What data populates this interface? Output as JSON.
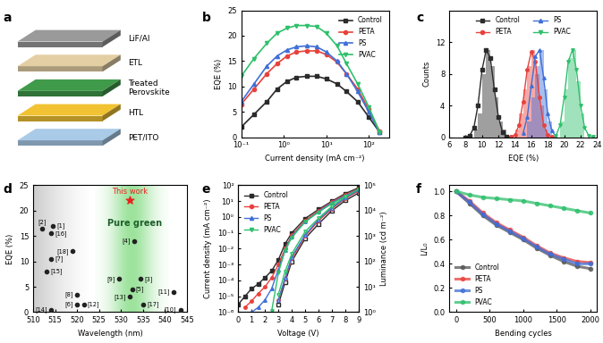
{
  "chart_data": [
    {
      "panel_label": "a",
      "type": "diagram",
      "layers": [
        {
          "name": "LiF/Al",
          "color": "#9a9a9a"
        },
        {
          "name": "ETL",
          "color": "#e3cfa3"
        },
        {
          "name": "Treated\nPerovskite",
          "color": "#3f9a4a"
        },
        {
          "name": "HTL",
          "color": "#f1c232"
        },
        {
          "name": "PET/ITO",
          "color": "#a9cbe8"
        }
      ]
    },
    {
      "panel_label": "b",
      "type": "line",
      "log": "x",
      "x_label": "Current density (mA cm⁻²)",
      "y_label": "EQE (%)",
      "xlim": [
        0.1,
        300
      ],
      "xticks": [
        {
          "value": 0.1,
          "label": "10⁻¹"
        },
        {
          "value": 1,
          "label": "10⁰"
        },
        {
          "value": 10,
          "label": "10¹"
        },
        {
          "value": 100,
          "label": "10²"
        }
      ],
      "ylim": [
        0,
        25
      ],
      "yticks": [
        0,
        5,
        10,
        15,
        20,
        25
      ],
      "legend": "upper right",
      "x": [
        0.1,
        0.2,
        0.4,
        0.7,
        1.2,
        2,
        3.5,
        6,
        10,
        18,
        30,
        55,
        100,
        180
      ],
      "series": [
        {
          "name": "Control",
          "color": "#2b2b2b",
          "marker": "square",
          "values": [
            2,
            4.5,
            7,
            9.5,
            11,
            11.8,
            12,
            12,
            11.5,
            10.5,
            9,
            7,
            4,
            1
          ]
        },
        {
          "name": "PETA",
          "color": "#e8413c",
          "marker": "circle",
          "values": [
            6.5,
            9.5,
            12.5,
            14.5,
            16,
            16.8,
            17,
            17,
            16.3,
            14.8,
            12.5,
            9.5,
            5.5,
            1.2
          ]
        },
        {
          "name": "PS",
          "color": "#3f6fd8",
          "marker": "triangle_up",
          "values": [
            7,
            10.5,
            14,
            16,
            17.2,
            17.8,
            18,
            17.8,
            16.8,
            15,
            12.5,
            9,
            5,
            1
          ]
        },
        {
          "name": "PVAC",
          "color": "#2ec06b",
          "marker": "triangle_down",
          "values": [
            12,
            15.5,
            18.5,
            20.5,
            21.5,
            22,
            22,
            21.8,
            20.5,
            18,
            14.5,
            10.5,
            6,
            1
          ]
        }
      ]
    },
    {
      "panel_label": "c",
      "type": "histogram",
      "x_label": "EQE (%)",
      "y_label": "Counts",
      "xlim": [
        6,
        24
      ],
      "xticks": [
        6,
        8,
        10,
        12,
        14,
        16,
        18,
        20,
        22,
        24
      ],
      "ylim": [
        0,
        16
      ],
      "yticks": [
        0,
        4,
        8,
        12
      ],
      "legend": "upper center",
      "series": [
        {
          "name": "Control",
          "color": "#2b2b2b",
          "marker": "square",
          "bins": [
            9,
            9.5,
            10,
            10.5,
            11,
            11.5,
            12,
            12.5,
            13
          ],
          "counts": [
            1,
            3,
            8,
            11,
            9,
            5,
            2,
            1
          ],
          "fit_x": [
            8,
            8.5,
            9,
            9.5,
            10,
            10.5,
            11,
            11.5,
            12,
            12.5,
            13,
            13.5
          ],
          "fit_y": [
            0,
            0.2,
            1.2,
            4,
            8.5,
            11,
            10,
            6,
            2.5,
            0.6,
            0.1,
            0
          ]
        },
        {
          "name": "PETA",
          "color": "#e8413c",
          "marker": "circle",
          "bins": [
            14,
            14.5,
            15,
            15.5,
            16,
            16.5,
            17,
            17.5,
            18
          ],
          "counts": [
            1,
            3,
            6,
            9,
            11,
            8,
            4,
            1
          ],
          "fit_x": [
            13.5,
            14,
            14.5,
            15,
            15.5,
            16,
            16.5,
            17,
            17.5,
            18,
            18.5
          ],
          "fit_y": [
            0.05,
            0.3,
            1.5,
            4.5,
            8.5,
            10.8,
            9.5,
            5,
            1.5,
            0.3,
            0.05
          ]
        },
        {
          "name": "PS",
          "color": "#3f6fd8",
          "marker": "triangle_up",
          "bins": [
            15.5,
            16,
            16.5,
            17,
            17.5,
            18,
            18.5
          ],
          "counts": [
            2,
            5,
            9,
            11,
            6,
            2
          ],
          "fit_x": [
            15,
            15.5,
            16,
            16.5,
            17,
            17.5,
            18,
            18.5,
            19
          ],
          "fit_y": [
            0.5,
            2.5,
            6.5,
            10.2,
            11,
            7.5,
            3,
            0.8,
            0.1
          ]
        },
        {
          "name": "PVAC",
          "color": "#2ec06b",
          "marker": "triangle_down",
          "bins": [
            19.5,
            20,
            20.5,
            21,
            21.5,
            22,
            22.5
          ],
          "counts": [
            2,
            6,
            10,
            11,
            7,
            3
          ],
          "fit_x": [
            19,
            19.5,
            20,
            20.5,
            21,
            21.5,
            22,
            22.5,
            23,
            23.5
          ],
          "fit_y": [
            0.2,
            1.5,
            5,
            9.5,
            11,
            8.5,
            4,
            1.2,
            0.2,
            0.05
          ]
        }
      ]
    },
    {
      "panel_label": "d",
      "type": "scatter",
      "x_label": "Wavelength (nm)",
      "y_label": "EQE (%)",
      "xlim": [
        510,
        545
      ],
      "xticks": [
        510,
        515,
        520,
        525,
        530,
        535,
        540,
        545
      ],
      "ylim": [
        0,
        25
      ],
      "yticks": [
        0,
        5,
        10,
        15,
        20,
        25
      ],
      "color": "#222222",
      "marker": "circle",
      "annotation": "Pure green",
      "points": [
        {
          "label": "[2]",
          "x": 512,
          "y": 16.5
        },
        {
          "label": "[1]",
          "x": 514.5,
          "y": 17
        },
        {
          "label": "[16]",
          "x": 514,
          "y": 15.5
        },
        {
          "label": "[18]",
          "x": 519,
          "y": 12
        },
        {
          "label": "[7]",
          "x": 514,
          "y": 10.5
        },
        {
          "label": "[15]",
          "x": 513,
          "y": 8
        },
        {
          "label": "[14]",
          "x": 514,
          "y": 0.5
        },
        {
          "label": "[8]",
          "x": 520,
          "y": 3.5
        },
        {
          "label": "[6]",
          "x": 520,
          "y": 1.5
        },
        {
          "label": "[12]",
          "x": 521.5,
          "y": 1.5
        },
        {
          "label": "[4]",
          "x": 533,
          "y": 14
        },
        {
          "label": "[9]",
          "x": 529.5,
          "y": 6.5
        },
        {
          "label": "[5]",
          "x": 532.5,
          "y": 4.5
        },
        {
          "label": "[3]",
          "x": 534.5,
          "y": 6.5
        },
        {
          "label": "[13]",
          "x": 532,
          "y": 3
        },
        {
          "label": "[17]",
          "x": 535,
          "y": 1.5
        },
        {
          "label": "[11]",
          "x": 542,
          "y": 4
        },
        {
          "label": "[10]",
          "x": 543.5,
          "y": 0.5
        }
      ],
      "highlight": {
        "label": "This work",
        "x": 532,
        "y": 22,
        "color": "#e8231f",
        "marker": "star"
      }
    },
    {
      "panel_label": "e",
      "type": "line",
      "log": "y",
      "x_label": "Voltage (V)",
      "y_label": "Current density (mA cm⁻²)",
      "y2_label": "Luminance (cd m⁻²)",
      "xlim": [
        0,
        9
      ],
      "xticks": [
        0,
        1,
        2,
        3,
        4,
        5,
        6,
        7,
        8,
        9
      ],
      "ylim": [
        1e-06,
        100
      ],
      "yticks": [
        {
          "value": 1e-06,
          "label": "10⁻⁶"
        },
        {
          "value": 1e-05,
          "label": "10⁻⁵"
        },
        {
          "value": 0.0001,
          "label": "10⁻⁴"
        },
        {
          "value": 0.001,
          "label": "10⁻³"
        },
        {
          "value": 0.01,
          "label": "10⁻²"
        },
        {
          "value": 0.1,
          "label": "10⁻¹"
        },
        {
          "value": 1,
          "label": "10⁰"
        },
        {
          "value": 10,
          "label": "10¹"
        },
        {
          "value": 100,
          "label": "10²"
        }
      ],
      "y2lim": [
        1,
        100000
      ],
      "y2ticks": [
        {
          "value": 1,
          "label": "10⁰"
        },
        {
          "value": 10,
          "label": "10¹"
        },
        {
          "value": 100,
          "label": "10²"
        },
        {
          "value": 1000,
          "label": "10³"
        },
        {
          "value": 10000,
          "label": "10⁴"
        },
        {
          "value": 100000,
          "label": "10⁵"
        }
      ],
      "legend": "upper left",
      "x": [
        0,
        0.5,
        1,
        1.5,
        2,
        2.5,
        3,
        3.5,
        4,
        5,
        6,
        7,
        8,
        9
      ],
      "series": [
        {
          "name": "Control",
          "color": "#2b2b2b",
          "marker": "square",
          "values": [
            3e-06,
            1e-05,
            3e-05,
            6e-05,
            0.00015,
            0.0004,
            0.002,
            0.02,
            0.1,
            0.8,
            3,
            10,
            30,
            70
          ],
          "luminance": [
            null,
            null,
            null,
            null,
            null,
            null,
            2,
            15,
            100,
            800,
            3000,
            10000,
            25000,
            50000
          ]
        },
        {
          "name": "PETA",
          "color": "#e8413c",
          "marker": "circle",
          "values": [
            null,
            2e-06,
            5e-06,
            1.5e-05,
            4e-05,
            0.00015,
            0.001,
            0.01,
            0.07,
            0.6,
            2.5,
            9,
            25,
            60
          ],
          "luminance": [
            null,
            null,
            null,
            null,
            null,
            null,
            3,
            20,
            130,
            1000,
            4000,
            12000,
            30000,
            60000
          ]
        },
        {
          "name": "PS",
          "color": "#3f6fd8",
          "marker": "triangle_up",
          "values": [
            null,
            null,
            1e-06,
            2e-06,
            6e-06,
            3e-05,
            0.0005,
            0.008,
            0.06,
            0.5,
            2.2,
            8,
            22,
            55
          ],
          "luminance": [
            null,
            null,
            null,
            null,
            null,
            null,
            3,
            22,
            150,
            1100,
            4500,
            13000,
            32000,
            65000
          ]
        },
        {
          "name": "PVAC",
          "color": "#2ec06b",
          "marker": "triangle_down",
          "values": [
            null,
            null,
            null,
            null,
            null,
            1.2e-06,
            0.0003,
            0.008,
            0.05,
            0.5,
            2,
            7,
            20,
            50
          ],
          "luminance": [
            null,
            null,
            null,
            null,
            null,
            null,
            5,
            40,
            200,
            1500,
            5000,
            15000,
            35000,
            70000
          ]
        }
      ]
    },
    {
      "panel_label": "f",
      "type": "line",
      "x_label": "Bending cycles",
      "y_label": "L/L₀",
      "xlim": [
        -100,
        2100
      ],
      "xticks": [
        0,
        500,
        1000,
        1500,
        2000
      ],
      "ylim": [
        0,
        1.05
      ],
      "yticks": [
        0.0,
        0.2,
        0.4,
        0.6,
        0.8,
        1.0
      ],
      "legend": "lower left",
      "x": [
        0,
        200,
        400,
        600,
        800,
        1000,
        1200,
        1400,
        1600,
        1800,
        2000
      ],
      "series": [
        {
          "name": "Control",
          "color": "#555555",
          "marker": "circle",
          "values": [
            1,
            0.9,
            0.8,
            0.72,
            0.66,
            0.6,
            0.53,
            0.47,
            0.42,
            0.38,
            0.36
          ]
        },
        {
          "name": "PETA",
          "color": "#e8413c",
          "marker": "circle",
          "values": [
            1,
            0.92,
            0.82,
            0.74,
            0.68,
            0.62,
            0.55,
            0.49,
            0.45,
            0.42,
            0.41
          ]
        },
        {
          "name": "PS",
          "color": "#3f6fd8",
          "marker": "circle",
          "values": [
            1,
            0.91,
            0.81,
            0.73,
            0.67,
            0.61,
            0.54,
            0.48,
            0.44,
            0.4,
            0.4
          ]
        },
        {
          "name": "PVAC",
          "color": "#2ec06b",
          "marker": "circle",
          "values": [
            1,
            0.97,
            0.95,
            0.94,
            0.93,
            0.92,
            0.9,
            0.88,
            0.86,
            0.84,
            0.82
          ]
        }
      ]
    }
  ]
}
